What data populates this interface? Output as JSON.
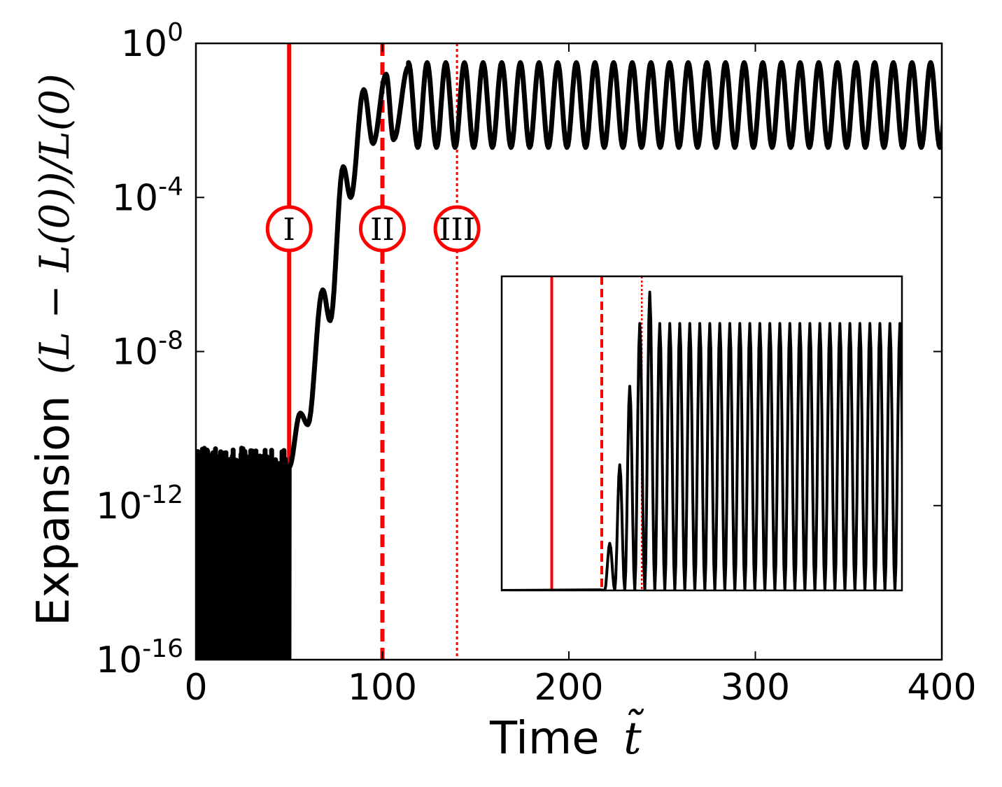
{
  "chart_data": {
    "type": "line",
    "xlabel": "Time",
    "xlabel_symbol": "t̃",
    "ylabel": "Expansion",
    "ylabel_math": "(L − L(0))/L(0)",
    "xlim": [
      0,
      400
    ],
    "x_ticks": [
      "0",
      "100",
      "200",
      "300",
      "400"
    ],
    "x_tick_values": [
      0,
      100,
      200,
      300,
      400
    ],
    "yscale": "log",
    "ylim_exponent": [
      -16,
      0
    ],
    "y_ticks": [
      {
        "base": "10",
        "exp": "0",
        "value": 0
      },
      {
        "base": "10",
        "exp": "-4",
        "value": -4
      },
      {
        "base": "10",
        "exp": "-8",
        "value": -8
      },
      {
        "base": "10",
        "exp": "-12",
        "value": -12
      },
      {
        "base": "10",
        "exp": "-16",
        "value": -16
      }
    ],
    "grid": false,
    "series_color": "#000000",
    "marker_color": "#ff0000",
    "series": [
      {
        "noise_region": {
          "x_range": [
            0,
            50
          ],
          "level_exponent": -10.9
        },
        "growth_points": [
          {
            "x": 50,
            "log10_y": -11
          },
          {
            "x": 56,
            "log10_y": -9.6
          },
          {
            "x": 60,
            "log10_y": -9.9
          },
          {
            "x": 68,
            "log10_y": -6.4
          },
          {
            "x": 72,
            "log10_y": -7.2
          },
          {
            "x": 79,
            "log10_y": -3.2
          },
          {
            "x": 83,
            "log10_y": -4.0
          },
          {
            "x": 90,
            "log10_y": -1.2
          },
          {
            "x": 95,
            "log10_y": -2.6
          },
          {
            "x": 102,
            "log10_y": -0.8
          },
          {
            "x": 106,
            "log10_y": -2.5
          },
          {
            "x": 114,
            "log10_y": -0.6
          }
        ],
        "steady_oscillation": {
          "x_start": 114,
          "period": 10,
          "max_log10_y": -0.5,
          "min_log10_y": -2.7
        }
      }
    ],
    "markers": [
      {
        "label": "I",
        "x": 50,
        "style": "solid"
      },
      {
        "label": "II",
        "x": 100,
        "style": "dashed"
      },
      {
        "label": "III",
        "x": 140,
        "style": "dotted"
      }
    ],
    "inset": {
      "yscale": "linear",
      "description_series": "same series, linear scale",
      "onset_x": 103,
      "first_peaks_fraction": [
        0.15,
        0.4,
        0.65,
        0.85,
        0.95
      ],
      "steady_peak_fraction": 0.85
    }
  }
}
